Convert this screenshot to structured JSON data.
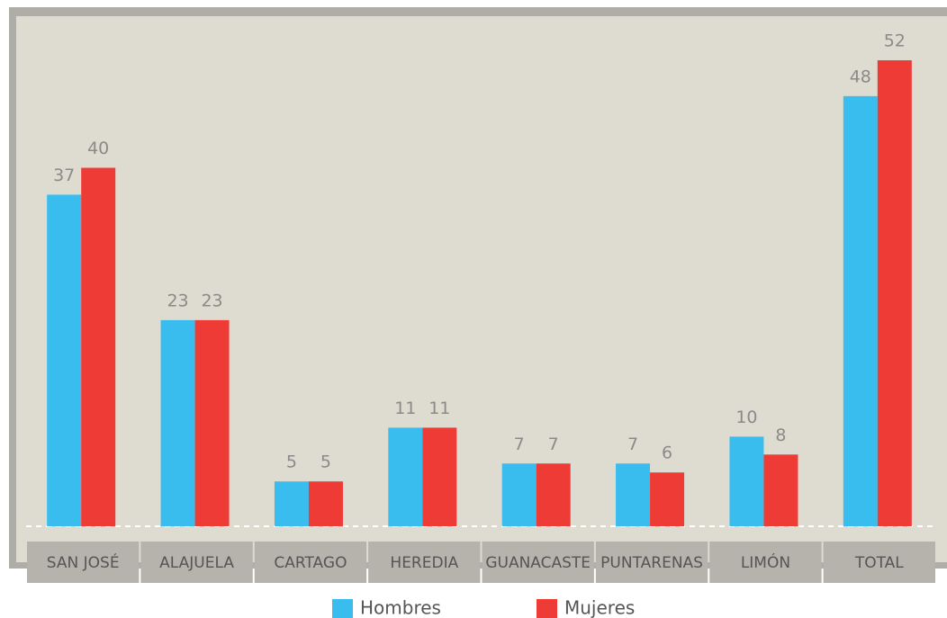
{
  "chart_data": {
    "type": "bar",
    "categories": [
      "SAN JOSÉ",
      "ALAJUELA",
      "CARTAGO",
      "HEREDIA",
      "GUANACASTE",
      "PUNTARENAS",
      "LIMÓN",
      "TOTAL"
    ],
    "series": [
      {
        "name": "Hombres",
        "color": "#38bdee",
        "values": [
          37,
          23,
          5,
          11,
          7,
          7,
          10,
          48
        ]
      },
      {
        "name": "Mujeres",
        "color": "#ef3b36",
        "values": [
          40,
          23,
          5,
          11,
          7,
          6,
          8,
          52
        ]
      }
    ]
  }
}
